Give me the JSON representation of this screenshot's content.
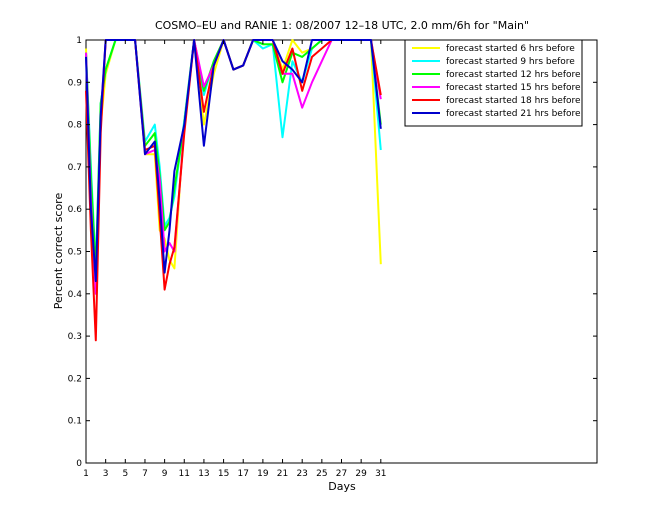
{
  "chart_data": {
    "type": "line",
    "title": "COSMO–EU and RANIE 1: 08/2007 12–18 UTC, 2.0 mm/6h for \"Main\"",
    "xlabel": "Days",
    "ylabel": "Percent correct score",
    "xlim": [
      1,
      53
    ],
    "ylim": [
      0,
      1
    ],
    "xticks": [
      "1",
      "3",
      "5",
      "7",
      "9",
      "11",
      "13",
      "15",
      "17",
      "19",
      "21",
      "23",
      "25",
      "27",
      "29",
      "31"
    ],
    "yticks": [
      "0",
      "0.1",
      "0.2",
      "0.3",
      "0.4",
      "0.5",
      "0.6",
      "0.7",
      "0.8",
      "0.9",
      "1"
    ],
    "legend_position": "top-right",
    "grid": false,
    "x": [
      1,
      1.5,
      2,
      2.5,
      3,
      4,
      5,
      6,
      7,
      8,
      8.5,
      9,
      9.5,
      10,
      11,
      12,
      13,
      14,
      15,
      16,
      17,
      18,
      19,
      20,
      21,
      22,
      23,
      24,
      25,
      26,
      30,
      31
    ],
    "series": [
      {
        "name": "forecast started 6 hrs before",
        "color": "#ffff00",
        "values": [
          0.98,
          0.65,
          0.44,
          0.8,
          0.92,
          1.0,
          1.0,
          1.0,
          0.73,
          0.73,
          0.55,
          0.53,
          0.48,
          0.46,
          0.81,
          1.0,
          0.8,
          0.92,
          1.0,
          0.93,
          0.94,
          1.0,
          1.0,
          1.0,
          0.93,
          1.0,
          0.97,
          0.98,
          1.0,
          1.0,
          1.0,
          0.47
        ]
      },
      {
        "name": "forecast started 9 hrs before",
        "color": "#00ffff",
        "values": [
          0.97,
          0.7,
          0.46,
          0.85,
          0.93,
          1.0,
          1.0,
          1.0,
          0.76,
          0.8,
          0.7,
          0.56,
          0.58,
          0.63,
          0.81,
          1.0,
          0.87,
          0.95,
          1.0,
          0.93,
          0.94,
          1.0,
          0.98,
          0.99,
          0.77,
          0.95,
          0.9,
          0.98,
          1.0,
          1.0,
          1.0,
          0.74
        ]
      },
      {
        "name": "forecast started 12 hrs before",
        "color": "#00ff00",
        "values": [
          0.97,
          0.68,
          0.45,
          0.85,
          0.93,
          1.0,
          1.0,
          1.0,
          0.75,
          0.78,
          0.68,
          0.55,
          0.57,
          0.65,
          0.8,
          1.0,
          0.88,
          0.95,
          1.0,
          0.93,
          0.94,
          1.0,
          0.99,
          0.99,
          0.9,
          0.97,
          0.96,
          0.98,
          1.0,
          1.0,
          1.0,
          0.8
        ]
      },
      {
        "name": "forecast started 15 hrs before",
        "color": "#ff00ff",
        "values": [
          0.97,
          0.62,
          0.4,
          0.82,
          1.0,
          1.0,
          1.0,
          1.0,
          0.73,
          0.74,
          0.67,
          0.5,
          0.52,
          0.5,
          0.79,
          1.0,
          0.89,
          0.94,
          1.0,
          0.93,
          0.94,
          1.0,
          1.0,
          1.0,
          0.92,
          0.92,
          0.84,
          0.9,
          0.95,
          1.0,
          1.0,
          0.86
        ]
      },
      {
        "name": "forecast started 18 hrs before",
        "color": "#ff0000",
        "values": [
          0.88,
          0.55,
          0.29,
          0.78,
          1.0,
          1.0,
          1.0,
          1.0,
          0.74,
          0.75,
          0.58,
          0.41,
          0.47,
          0.51,
          0.78,
          1.0,
          0.83,
          0.94,
          1.0,
          0.93,
          0.94,
          1.0,
          1.0,
          1.0,
          0.92,
          0.98,
          0.88,
          0.96,
          0.98,
          1.0,
          1.0,
          0.87
        ]
      },
      {
        "name": "forecast started 21 hrs before",
        "color": "#0000cc",
        "values": [
          0.96,
          0.6,
          0.43,
          0.82,
          1.0,
          1.0,
          1.0,
          1.0,
          0.73,
          0.76,
          0.62,
          0.45,
          0.55,
          0.69,
          0.8,
          1.0,
          0.75,
          0.94,
          1.0,
          0.93,
          0.94,
          1.0,
          1.0,
          1.0,
          0.95,
          0.93,
          0.9,
          1.0,
          1.0,
          1.0,
          1.0,
          0.79
        ]
      }
    ]
  }
}
